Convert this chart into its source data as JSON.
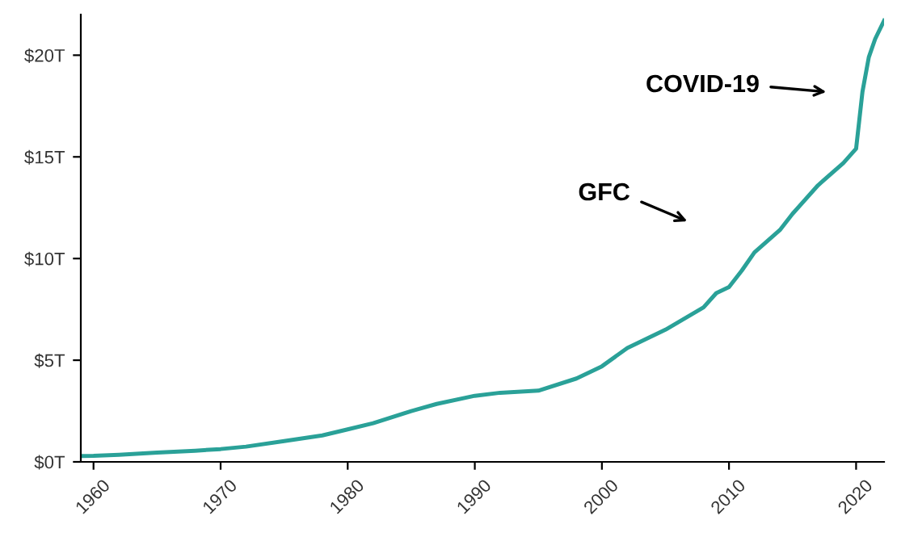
{
  "chart_data": {
    "type": "line",
    "x": [
      1959,
      1960,
      1962,
      1965,
      1968,
      1970,
      1972,
      1975,
      1978,
      1980,
      1982,
      1985,
      1987,
      1990,
      1992,
      1995,
      1998,
      2000,
      2002,
      2005,
      2008,
      2009,
      2010,
      2011,
      2012,
      2014,
      2015,
      2017,
      2019,
      2020,
      2020.5,
      2021,
      2021.5,
      2022.2
    ],
    "series": [
      {
        "color": "#2aa198",
        "values": [
          0.29,
          0.3,
          0.35,
          0.46,
          0.55,
          0.63,
          0.75,
          1.02,
          1.3,
          1.6,
          1.9,
          2.5,
          2.85,
          3.25,
          3.4,
          3.5,
          4.1,
          4.7,
          5.6,
          6.5,
          7.6,
          8.3,
          8.6,
          9.4,
          10.3,
          11.4,
          12.2,
          13.6,
          14.7,
          15.4,
          18.2,
          19.9,
          20.8,
          21.7
        ]
      }
    ],
    "xlim": [
      1959,
      2022.2
    ],
    "xticks": [
      1960,
      1970,
      1980,
      1990,
      2000,
      2010,
      2020
    ],
    "ylim": [
      0,
      22
    ],
    "yticks": [
      {
        "value": 0,
        "label": "$0T"
      },
      {
        "value": 5,
        "label": "$5T"
      },
      {
        "value": 10,
        "label": "$10T"
      },
      {
        "value": 15,
        "label": "$15T"
      },
      {
        "value": 20,
        "label": "$20T"
      }
    ],
    "grid": false,
    "legend": false,
    "annotations": [
      "GFC",
      "COVID-19"
    ]
  }
}
